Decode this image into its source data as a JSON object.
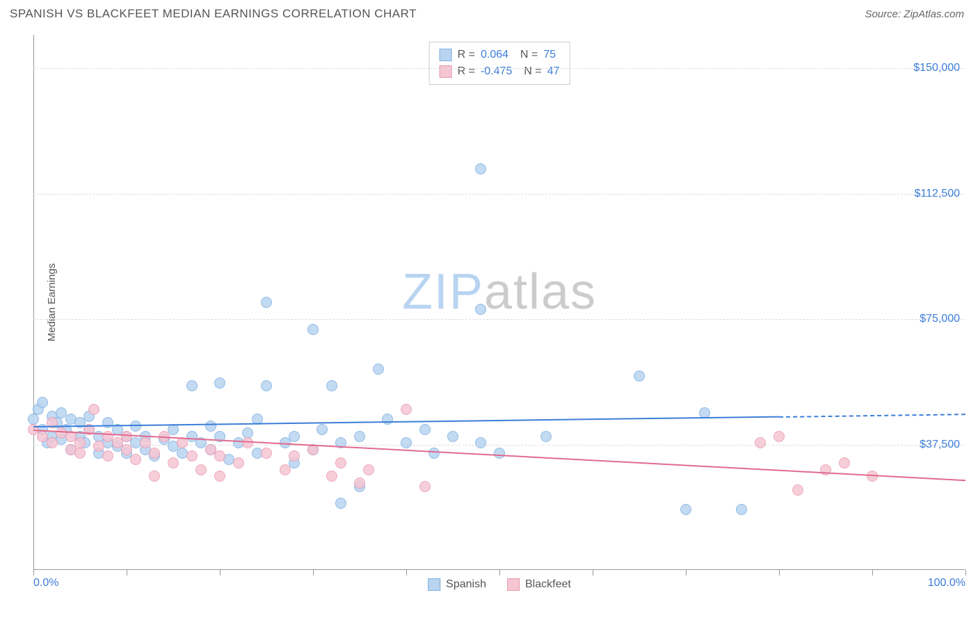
{
  "header": {
    "title": "SPANISH VS BLACKFEET MEDIAN EARNINGS CORRELATION CHART",
    "source": "Source: ZipAtlas.com"
  },
  "watermark": {
    "part1": "ZIP",
    "part2": "atlas"
  },
  "chart": {
    "type": "scatter",
    "ylabel": "Median Earnings",
    "xlim": [
      0,
      100
    ],
    "ylim": [
      0,
      160000
    ],
    "y_ticks": [
      37500,
      75000,
      112500,
      150000
    ],
    "y_tick_labels": [
      "$37,500",
      "$75,000",
      "$112,500",
      "$150,000"
    ],
    "x_ticks": [
      0,
      10,
      20,
      30,
      40,
      50,
      60,
      70,
      80,
      90,
      100
    ],
    "x_tick_labels_shown": {
      "0": "0.0%",
      "100": "100.0%"
    },
    "grid_color": "#dddddd",
    "axis_color": "#999999",
    "label_color": "#3b7dd8",
    "background_color": "#ffffff",
    "point_radius": 8,
    "series": [
      {
        "name": "Spanish",
        "fill": "#b8d4f0",
        "stroke": "#7fb0e0",
        "line_color": "#3b7dd8",
        "R": "0.064",
        "N": "75",
        "trend": {
          "x1": 0,
          "y1": 43000,
          "x2": 80,
          "y2": 46000,
          "dash_x2": 100,
          "dash_y2": 46800
        },
        "points": [
          [
            0,
            45000
          ],
          [
            0.5,
            48000
          ],
          [
            1,
            42000
          ],
          [
            1,
            50000
          ],
          [
            1.5,
            38000
          ],
          [
            2,
            46000
          ],
          [
            2,
            40000
          ],
          [
            2.5,
            44000
          ],
          [
            3,
            47000
          ],
          [
            3,
            39000
          ],
          [
            3.5,
            42000
          ],
          [
            4,
            45000
          ],
          [
            4,
            36000
          ],
          [
            5,
            40000
          ],
          [
            5,
            44000
          ],
          [
            5.5,
            38000
          ],
          [
            6,
            42000
          ],
          [
            6,
            46000
          ],
          [
            7,
            40000
          ],
          [
            7,
            35000
          ],
          [
            8,
            38000
          ],
          [
            8,
            44000
          ],
          [
            9,
            37000
          ],
          [
            9,
            42000
          ],
          [
            10,
            40000
          ],
          [
            10,
            35000
          ],
          [
            11,
            38000
          ],
          [
            11,
            43000
          ],
          [
            12,
            36000
          ],
          [
            12,
            40000
          ],
          [
            13,
            34000
          ],
          [
            14,
            39000
          ],
          [
            15,
            37000
          ],
          [
            15,
            42000
          ],
          [
            16,
            35000
          ],
          [
            17,
            40000
          ],
          [
            17,
            55000
          ],
          [
            18,
            38000
          ],
          [
            19,
            43000
          ],
          [
            19,
            36000
          ],
          [
            20,
            40000
          ],
          [
            20,
            56000
          ],
          [
            21,
            33000
          ],
          [
            22,
            38000
          ],
          [
            23,
            41000
          ],
          [
            24,
            45000
          ],
          [
            24,
            35000
          ],
          [
            25,
            55000
          ],
          [
            25,
            80000
          ],
          [
            27,
            38000
          ],
          [
            28,
            40000
          ],
          [
            28,
            32000
          ],
          [
            30,
            36000
          ],
          [
            30,
            72000
          ],
          [
            31,
            42000
          ],
          [
            32,
            55000
          ],
          [
            33,
            38000
          ],
          [
            33,
            20000
          ],
          [
            35,
            40000
          ],
          [
            35,
            25000
          ],
          [
            37,
            60000
          ],
          [
            38,
            45000
          ],
          [
            40,
            38000
          ],
          [
            42,
            42000
          ],
          [
            43,
            35000
          ],
          [
            45,
            40000
          ],
          [
            48,
            120000
          ],
          [
            48,
            38000
          ],
          [
            48,
            78000
          ],
          [
            50,
            35000
          ],
          [
            55,
            40000
          ],
          [
            65,
            58000
          ],
          [
            70,
            18000
          ],
          [
            72,
            47000
          ],
          [
            76,
            18000
          ]
        ]
      },
      {
        "name": "Blackfeet",
        "fill": "#f5c6d3",
        "stroke": "#e89ab0",
        "line_color": "#e26a8f",
        "R": "-0.475",
        "N": "47",
        "trend": {
          "x1": 0,
          "y1": 42000,
          "x2": 100,
          "y2": 27000
        },
        "points": [
          [
            0,
            42000
          ],
          [
            1,
            40000
          ],
          [
            2,
            44000
          ],
          [
            2,
            38000
          ],
          [
            3,
            41000
          ],
          [
            4,
            36000
          ],
          [
            4,
            40000
          ],
          [
            5,
            38000
          ],
          [
            5,
            35000
          ],
          [
            6,
            42000
          ],
          [
            6.5,
            48000
          ],
          [
            7,
            37000
          ],
          [
            8,
            40000
          ],
          [
            8,
            34000
          ],
          [
            9,
            38000
          ],
          [
            10,
            36000
          ],
          [
            10,
            40000
          ],
          [
            11,
            33000
          ],
          [
            12,
            38000
          ],
          [
            13,
            35000
          ],
          [
            13,
            28000
          ],
          [
            14,
            40000
          ],
          [
            15,
            32000
          ],
          [
            16,
            38000
          ],
          [
            17,
            34000
          ],
          [
            18,
            30000
          ],
          [
            19,
            36000
          ],
          [
            20,
            34000
          ],
          [
            20,
            28000
          ],
          [
            22,
            32000
          ],
          [
            23,
            38000
          ],
          [
            25,
            35000
          ],
          [
            27,
            30000
          ],
          [
            28,
            34000
          ],
          [
            30,
            36000
          ],
          [
            32,
            28000
          ],
          [
            33,
            32000
          ],
          [
            35,
            26000
          ],
          [
            36,
            30000
          ],
          [
            40,
            48000
          ],
          [
            42,
            25000
          ],
          [
            78,
            38000
          ],
          [
            80,
            40000
          ],
          [
            82,
            24000
          ],
          [
            85,
            30000
          ],
          [
            87,
            32000
          ],
          [
            90,
            28000
          ]
        ]
      }
    ],
    "legend_bottom": [
      {
        "label": "Spanish",
        "fill": "#b8d4f0",
        "stroke": "#7fb0e0"
      },
      {
        "label": "Blackfeet",
        "fill": "#f5c6d3",
        "stroke": "#e89ab0"
      }
    ]
  }
}
